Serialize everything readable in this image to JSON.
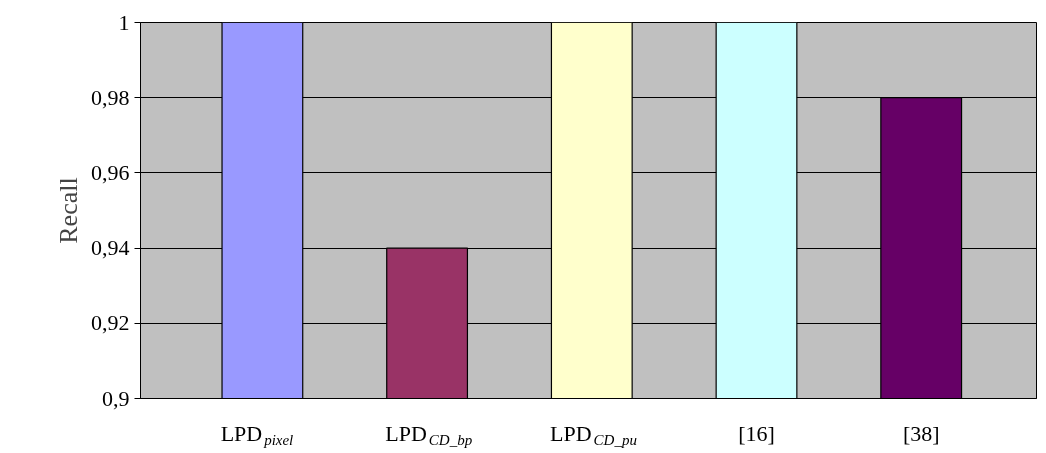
{
  "chart_data": {
    "type": "bar",
    "ylabel": "Recall",
    "categories": [
      "LPD$_{pixel}$",
      "LPD$_{CD_bp}$",
      "LPD$_{CD_pu}$",
      "[16]",
      "[38]"
    ],
    "values": [
      1,
      0.94,
      1,
      1,
      0.98
    ],
    "colors": [
      "#9999ff",
      "#993366",
      "#ffffcc",
      "#ccffff",
      "#660066"
    ],
    "ylim": [
      0.9,
      1
    ],
    "yticks": [
      {
        "value": 0.9,
        "label": "0,9"
      },
      {
        "value": 0.92,
        "label": "0,92"
      },
      {
        "value": 0.94,
        "label": "0,94"
      },
      {
        "value": 0.96,
        "label": "0,96"
      },
      {
        "value": 0.98,
        "label": "0,98"
      },
      {
        "value": 1,
        "label": "1"
      }
    ],
    "grid": "y"
  }
}
